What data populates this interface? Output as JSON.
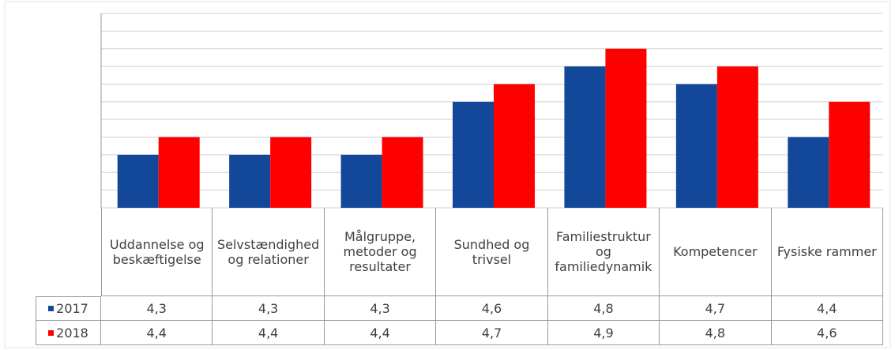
{
  "chart_data": {
    "type": "bar",
    "categories": [
      "Uddannelse og beskæftigelse",
      "Selvstændighed og relationer",
      "Målgruppe, metoder og resultater",
      "Sundhed og trivsel",
      "Familiestruktur og familiedynamik",
      "Kompetencer",
      "Fysiske rammer"
    ],
    "series": [
      {
        "name": "2017",
        "color": "#12479a",
        "values": [
          4.3,
          4.3,
          4.3,
          4.6,
          4.8,
          4.7,
          4.4
        ],
        "value_labels": [
          "4,3",
          "4,3",
          "4,3",
          "4,6",
          "4,8",
          "4,7",
          "4,4"
        ]
      },
      {
        "name": "2018",
        "color": "#ff0000",
        "values": [
          4.4,
          4.4,
          4.4,
          4.7,
          4.9,
          4.8,
          4.6
        ],
        "value_labels": [
          "4,4",
          "4,4",
          "4,4",
          "4,7",
          "4,9",
          "4,8",
          "4,6"
        ]
      }
    ],
    "ylim": [
      4.0,
      5.1
    ],
    "yticks": [
      4.0,
      4.1,
      4.2,
      4.3,
      4.4,
      4.5,
      4.6,
      4.7,
      4.8,
      4.9,
      5.0,
      5.1
    ],
    "grid": true
  }
}
